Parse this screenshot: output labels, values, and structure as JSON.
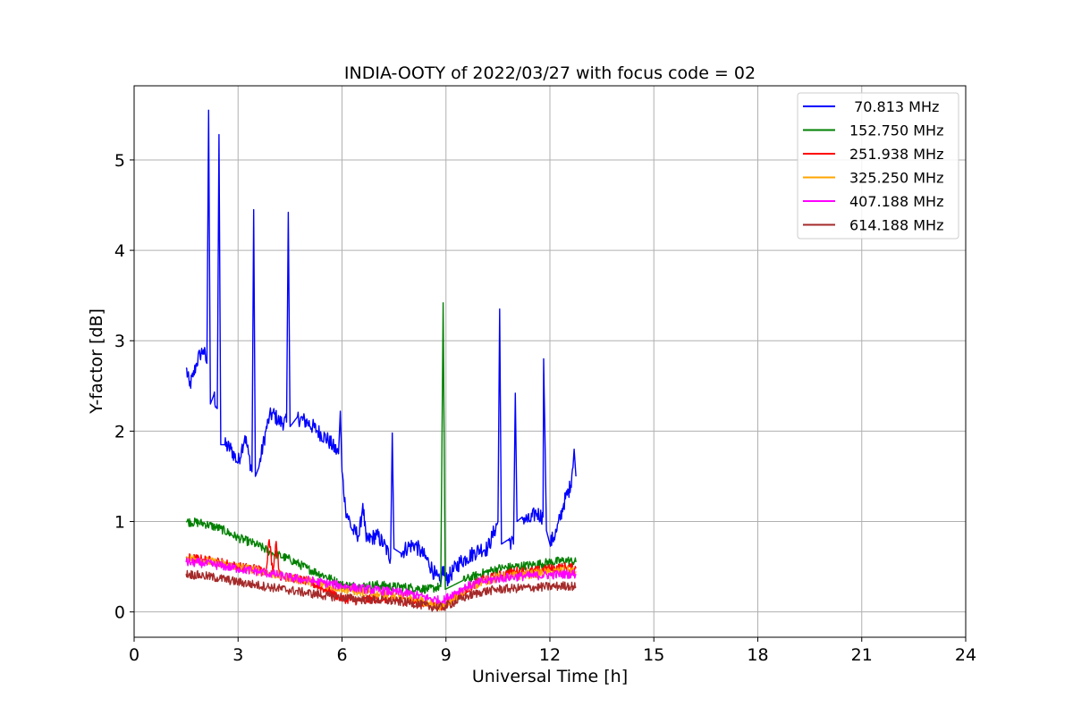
{
  "chart_data": {
    "type": "line",
    "title": "INDIA-OOTY of 2022/03/27 with focus code = 02",
    "xlabel": "Universal Time [h]",
    "ylabel": "Y-factor [dB]",
    "xlim": [
      0,
      24
    ],
    "ylim": [
      -0.28,
      5.82
    ],
    "x_ticks": [
      0,
      3,
      6,
      9,
      12,
      15,
      18,
      21,
      24
    ],
    "y_ticks": [
      0,
      1,
      2,
      3,
      4,
      5
    ],
    "grid": true,
    "legend_position": "top-right",
    "series": [
      {
        "name": " 70.813 MHz",
        "color": "#0000ff",
        "points": [
          [
            1.5,
            2.7
          ],
          [
            1.6,
            2.5
          ],
          [
            1.7,
            2.6
          ],
          [
            1.8,
            2.75
          ],
          [
            1.9,
            2.85
          ],
          [
            2.0,
            2.9
          ],
          [
            2.1,
            2.75
          ],
          [
            2.15,
            5.55
          ],
          [
            2.2,
            2.3
          ],
          [
            2.3,
            2.4
          ],
          [
            2.4,
            2.25
          ],
          [
            2.45,
            5.28
          ],
          [
            2.5,
            1.85
          ],
          [
            2.6,
            1.85
          ],
          [
            2.8,
            1.8
          ],
          [
            3.0,
            1.65
          ],
          [
            3.1,
            1.8
          ],
          [
            3.2,
            1.95
          ],
          [
            3.3,
            1.75
          ],
          [
            3.4,
            1.55
          ],
          [
            3.45,
            4.45
          ],
          [
            3.5,
            1.5
          ],
          [
            3.6,
            1.6
          ],
          [
            3.8,
            2.0
          ],
          [
            3.9,
            2.15
          ],
          [
            4.0,
            2.2
          ],
          [
            4.2,
            2.1
          ],
          [
            4.4,
            2.1
          ],
          [
            4.45,
            4.42
          ],
          [
            4.5,
            2.05
          ],
          [
            4.7,
            2.15
          ],
          [
            5.0,
            2.1
          ],
          [
            5.3,
            2.0
          ],
          [
            5.6,
            1.9
          ],
          [
            5.9,
            1.75
          ],
          [
            5.95,
            2.22
          ],
          [
            6.0,
            1.55
          ],
          [
            6.1,
            1.15
          ],
          [
            6.3,
            0.9
          ],
          [
            6.5,
            0.85
          ],
          [
            6.6,
            1.2
          ],
          [
            6.7,
            0.78
          ],
          [
            7.0,
            0.85
          ],
          [
            7.2,
            0.75
          ],
          [
            7.4,
            0.6
          ],
          [
            7.45,
            1.98
          ],
          [
            7.5,
            0.7
          ],
          [
            7.7,
            0.65
          ],
          [
            7.9,
            0.72
          ],
          [
            8.1,
            0.75
          ],
          [
            8.3,
            0.65
          ],
          [
            8.5,
            0.55
          ],
          [
            8.7,
            0.4
          ],
          [
            8.85,
            0.3
          ],
          [
            8.9,
            0.5
          ],
          [
            9.0,
            0.35
          ],
          [
            9.2,
            0.45
          ],
          [
            9.4,
            0.55
          ],
          [
            9.6,
            0.6
          ],
          [
            9.8,
            0.65
          ],
          [
            10.0,
            0.7
          ],
          [
            10.2,
            0.7
          ],
          [
            10.4,
            0.9
          ],
          [
            10.5,
            1.0
          ],
          [
            10.55,
            3.35
          ],
          [
            10.6,
            0.75
          ],
          [
            10.8,
            0.8
          ],
          [
            10.95,
            0.75
          ],
          [
            11.0,
            2.42
          ],
          [
            11.05,
            1.0
          ],
          [
            11.2,
            1.05
          ],
          [
            11.4,
            1.0
          ],
          [
            11.6,
            1.1
          ],
          [
            11.8,
            1.05
          ],
          [
            11.82,
            2.8
          ],
          [
            11.9,
            0.9
          ],
          [
            12.0,
            0.75
          ],
          [
            12.2,
            0.9
          ],
          [
            12.4,
            1.2
          ],
          [
            12.6,
            1.4
          ],
          [
            12.7,
            1.8
          ],
          [
            12.75,
            1.5
          ]
        ]
      },
      {
        "name": "152.750 MHz",
        "color": "#008000",
        "points": [
          [
            1.5,
            1.0
          ],
          [
            2.0,
            0.98
          ],
          [
            2.5,
            0.92
          ],
          [
            3.0,
            0.82
          ],
          [
            3.5,
            0.75
          ],
          [
            4.0,
            0.65
          ],
          [
            4.5,
            0.58
          ],
          [
            5.0,
            0.48
          ],
          [
            5.5,
            0.4
          ],
          [
            6.0,
            0.3
          ],
          [
            6.5,
            0.28
          ],
          [
            7.0,
            0.3
          ],
          [
            7.5,
            0.28
          ],
          [
            8.0,
            0.27
          ],
          [
            8.5,
            0.25
          ],
          [
            8.85,
            0.28
          ],
          [
            8.92,
            3.42
          ],
          [
            8.98,
            0.25
          ],
          [
            9.5,
            0.35
          ],
          [
            10.0,
            0.42
          ],
          [
            10.5,
            0.48
          ],
          [
            11.0,
            0.5
          ],
          [
            11.5,
            0.52
          ],
          [
            12.0,
            0.55
          ],
          [
            12.5,
            0.57
          ],
          [
            12.75,
            0.55
          ]
        ]
      },
      {
        "name": "251.938 MHz",
        "color": "#ff0000",
        "points": [
          [
            1.5,
            0.6
          ],
          [
            2.0,
            0.58
          ],
          [
            2.5,
            0.55
          ],
          [
            3.0,
            0.5
          ],
          [
            3.5,
            0.48
          ],
          [
            3.8,
            0.45
          ],
          [
            3.9,
            0.8
          ],
          [
            4.0,
            0.45
          ],
          [
            4.1,
            0.78
          ],
          [
            4.2,
            0.4
          ],
          [
            4.5,
            0.38
          ],
          [
            5.0,
            0.34
          ],
          [
            5.5,
            0.25
          ],
          [
            6.0,
            0.15
          ],
          [
            6.5,
            0.12
          ],
          [
            7.0,
            0.15
          ],
          [
            7.5,
            0.13
          ],
          [
            8.0,
            0.12
          ],
          [
            8.5,
            0.08
          ],
          [
            8.9,
            0.05
          ],
          [
            9.2,
            0.15
          ],
          [
            9.6,
            0.25
          ],
          [
            10.0,
            0.35
          ],
          [
            10.5,
            0.4
          ],
          [
            11.0,
            0.45
          ],
          [
            11.5,
            0.45
          ],
          [
            12.0,
            0.48
          ],
          [
            12.5,
            0.5
          ],
          [
            12.75,
            0.48
          ]
        ]
      },
      {
        "name": "325.250 MHz",
        "color": "#ffa500",
        "points": [
          [
            1.5,
            0.6
          ],
          [
            2.0,
            0.57
          ],
          [
            2.5,
            0.53
          ],
          [
            3.0,
            0.5
          ],
          [
            3.5,
            0.46
          ],
          [
            4.0,
            0.42
          ],
          [
            4.5,
            0.38
          ],
          [
            5.0,
            0.34
          ],
          [
            5.5,
            0.3
          ],
          [
            6.0,
            0.26
          ],
          [
            6.5,
            0.22
          ],
          [
            7.0,
            0.2
          ],
          [
            7.5,
            0.18
          ],
          [
            8.0,
            0.15
          ],
          [
            8.5,
            0.1
          ],
          [
            8.9,
            0.05
          ],
          [
            9.2,
            0.15
          ],
          [
            9.6,
            0.25
          ],
          [
            10.0,
            0.33
          ],
          [
            10.5,
            0.38
          ],
          [
            11.0,
            0.4
          ],
          [
            11.5,
            0.42
          ],
          [
            12.0,
            0.44
          ],
          [
            12.5,
            0.46
          ],
          [
            12.75,
            0.45
          ]
        ]
      },
      {
        "name": "407.188 MHz",
        "color": "#ff00ff",
        "points": [
          [
            1.5,
            0.55
          ],
          [
            2.0,
            0.54
          ],
          [
            2.5,
            0.51
          ],
          [
            3.0,
            0.48
          ],
          [
            3.5,
            0.45
          ],
          [
            4.0,
            0.42
          ],
          [
            4.5,
            0.38
          ],
          [
            5.0,
            0.35
          ],
          [
            5.5,
            0.32
          ],
          [
            6.0,
            0.29
          ],
          [
            6.5,
            0.26
          ],
          [
            7.0,
            0.24
          ],
          [
            7.5,
            0.22
          ],
          [
            8.0,
            0.2
          ],
          [
            8.5,
            0.15
          ],
          [
            8.9,
            0.12
          ],
          [
            9.2,
            0.2
          ],
          [
            9.6,
            0.28
          ],
          [
            10.0,
            0.33
          ],
          [
            10.5,
            0.37
          ],
          [
            11.0,
            0.39
          ],
          [
            11.5,
            0.4
          ],
          [
            12.0,
            0.41
          ],
          [
            12.5,
            0.42
          ],
          [
            12.75,
            0.42
          ]
        ]
      },
      {
        "name": "614.188 MHz",
        "color": "#a52a2a",
        "points": [
          [
            1.5,
            0.42
          ],
          [
            2.0,
            0.4
          ],
          [
            2.5,
            0.37
          ],
          [
            3.0,
            0.33
          ],
          [
            3.5,
            0.3
          ],
          [
            4.0,
            0.27
          ],
          [
            4.5,
            0.24
          ],
          [
            5.0,
            0.21
          ],
          [
            5.5,
            0.18
          ],
          [
            6.0,
            0.16
          ],
          [
            6.5,
            0.14
          ],
          [
            7.0,
            0.13
          ],
          [
            7.5,
            0.12
          ],
          [
            8.0,
            0.1
          ],
          [
            8.5,
            0.06
          ],
          [
            8.9,
            0.05
          ],
          [
            9.2,
            0.1
          ],
          [
            9.6,
            0.17
          ],
          [
            10.0,
            0.22
          ],
          [
            10.5,
            0.25
          ],
          [
            11.0,
            0.26
          ],
          [
            11.5,
            0.27
          ],
          [
            12.0,
            0.28
          ],
          [
            12.5,
            0.29
          ],
          [
            12.75,
            0.28
          ]
        ]
      }
    ]
  }
}
